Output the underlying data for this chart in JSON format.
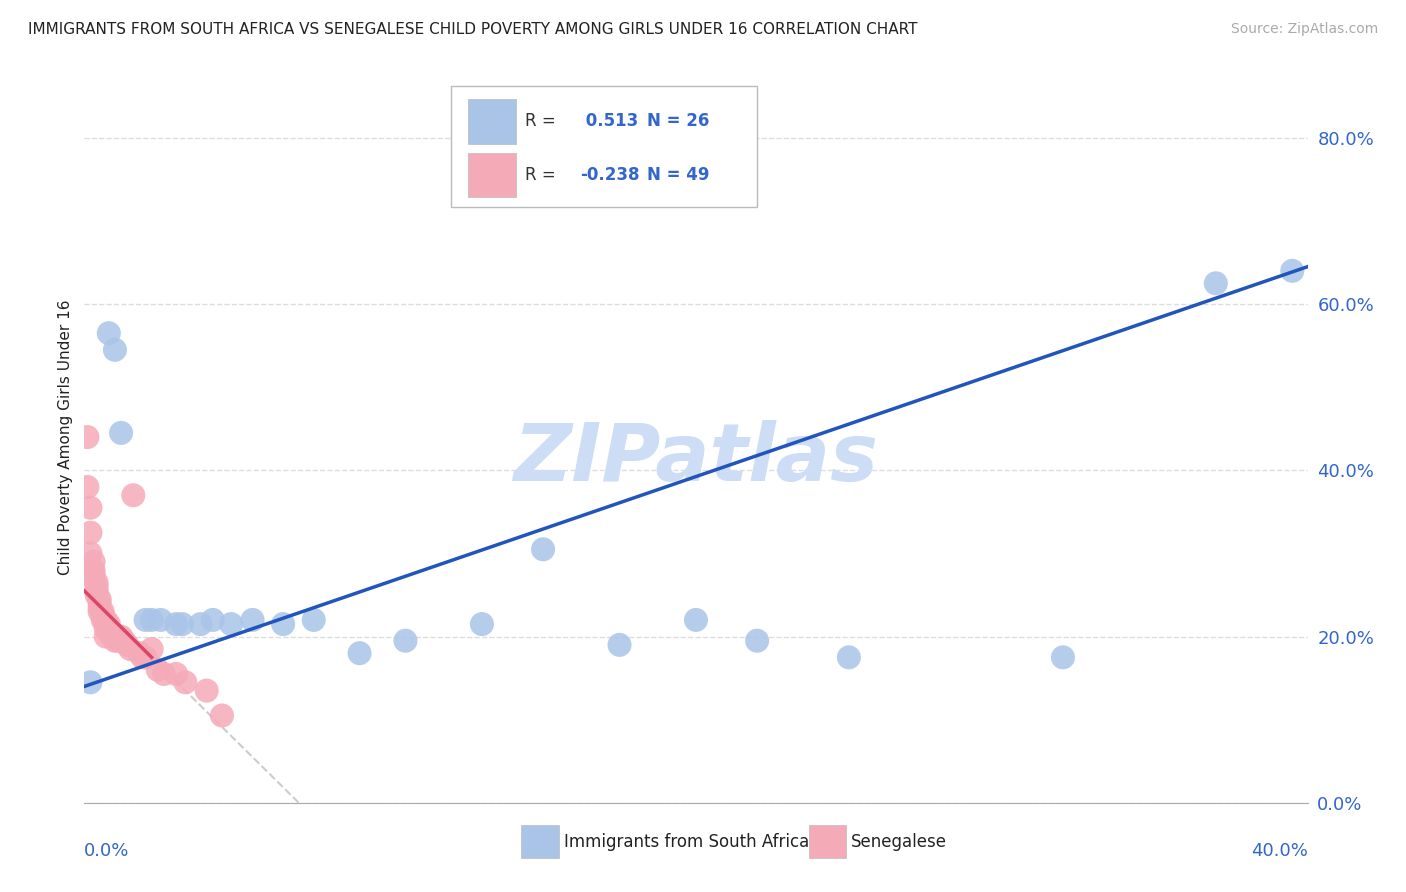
{
  "title": "IMMIGRANTS FROM SOUTH AFRICA VS SENEGALESE CHILD POVERTY AMONG GIRLS UNDER 16 CORRELATION CHART",
  "source": "Source: ZipAtlas.com",
  "ylabel": "Child Poverty Among Girls Under 16",
  "yticks_labels": [
    "0.0%",
    "20.0%",
    "40.0%",
    "60.0%",
    "80.0%"
  ],
  "ytick_vals": [
    0.0,
    0.2,
    0.4,
    0.6,
    0.8
  ],
  "xlim": [
    0.0,
    0.4
  ],
  "ylim": [
    0.0,
    0.88
  ],
  "blue_R": 0.513,
  "blue_N": 26,
  "pink_R": -0.238,
  "pink_N": 49,
  "blue_color": "#aac4e8",
  "pink_color": "#f5aab8",
  "blue_line_color": "#2255bb",
  "pink_line_color": "#dd4466",
  "pink_dash_color": "#cccccc",
  "blue_scatter_x": [
    0.002,
    0.008,
    0.01,
    0.012,
    0.02,
    0.022,
    0.025,
    0.03,
    0.032,
    0.038,
    0.042,
    0.048,
    0.055,
    0.065,
    0.075,
    0.09,
    0.105,
    0.13,
    0.15,
    0.175,
    0.2,
    0.22,
    0.25,
    0.32,
    0.37,
    0.395
  ],
  "blue_scatter_y": [
    0.145,
    0.565,
    0.545,
    0.445,
    0.22,
    0.22,
    0.22,
    0.215,
    0.215,
    0.215,
    0.22,
    0.215,
    0.22,
    0.215,
    0.22,
    0.18,
    0.195,
    0.215,
    0.305,
    0.19,
    0.22,
    0.195,
    0.175,
    0.175,
    0.625,
    0.64
  ],
  "pink_scatter_x": [
    0.001,
    0.001,
    0.002,
    0.002,
    0.002,
    0.003,
    0.003,
    0.003,
    0.003,
    0.004,
    0.004,
    0.004,
    0.004,
    0.005,
    0.005,
    0.005,
    0.005,
    0.006,
    0.006,
    0.006,
    0.007,
    0.007,
    0.007,
    0.007,
    0.008,
    0.008,
    0.008,
    0.009,
    0.009,
    0.01,
    0.01,
    0.011,
    0.011,
    0.012,
    0.012,
    0.013,
    0.014,
    0.015,
    0.016,
    0.018,
    0.019,
    0.02,
    0.022,
    0.024,
    0.026,
    0.03,
    0.033,
    0.04,
    0.045
  ],
  "pink_scatter_y": [
    0.44,
    0.38,
    0.355,
    0.325,
    0.3,
    0.29,
    0.28,
    0.275,
    0.27,
    0.265,
    0.26,
    0.255,
    0.25,
    0.245,
    0.24,
    0.235,
    0.23,
    0.23,
    0.225,
    0.22,
    0.22,
    0.215,
    0.21,
    0.2,
    0.215,
    0.21,
    0.205,
    0.205,
    0.2,
    0.2,
    0.195,
    0.2,
    0.195,
    0.2,
    0.195,
    0.195,
    0.19,
    0.185,
    0.37,
    0.18,
    0.175,
    0.175,
    0.185,
    0.16,
    0.155,
    0.155,
    0.145,
    0.135,
    0.105
  ],
  "blue_line_x0": 0.0,
  "blue_line_y0": 0.14,
  "blue_line_x1": 0.4,
  "blue_line_y1": 0.645,
  "pink_line_x0": 0.0,
  "pink_line_y0": 0.255,
  "pink_line_x1": 0.022,
  "pink_line_y1": 0.175,
  "watermark": "ZIPatlas",
  "watermark_color": "#ccddf5",
  "legend_box_color": "#ffffff",
  "legend_border_color": "#bbbbbb",
  "title_color": "#222222",
  "axis_tick_color": "#3366cc",
  "axis_color": "#aaaaaa",
  "grid_color": "#dddddd",
  "background_color": "#ffffff"
}
